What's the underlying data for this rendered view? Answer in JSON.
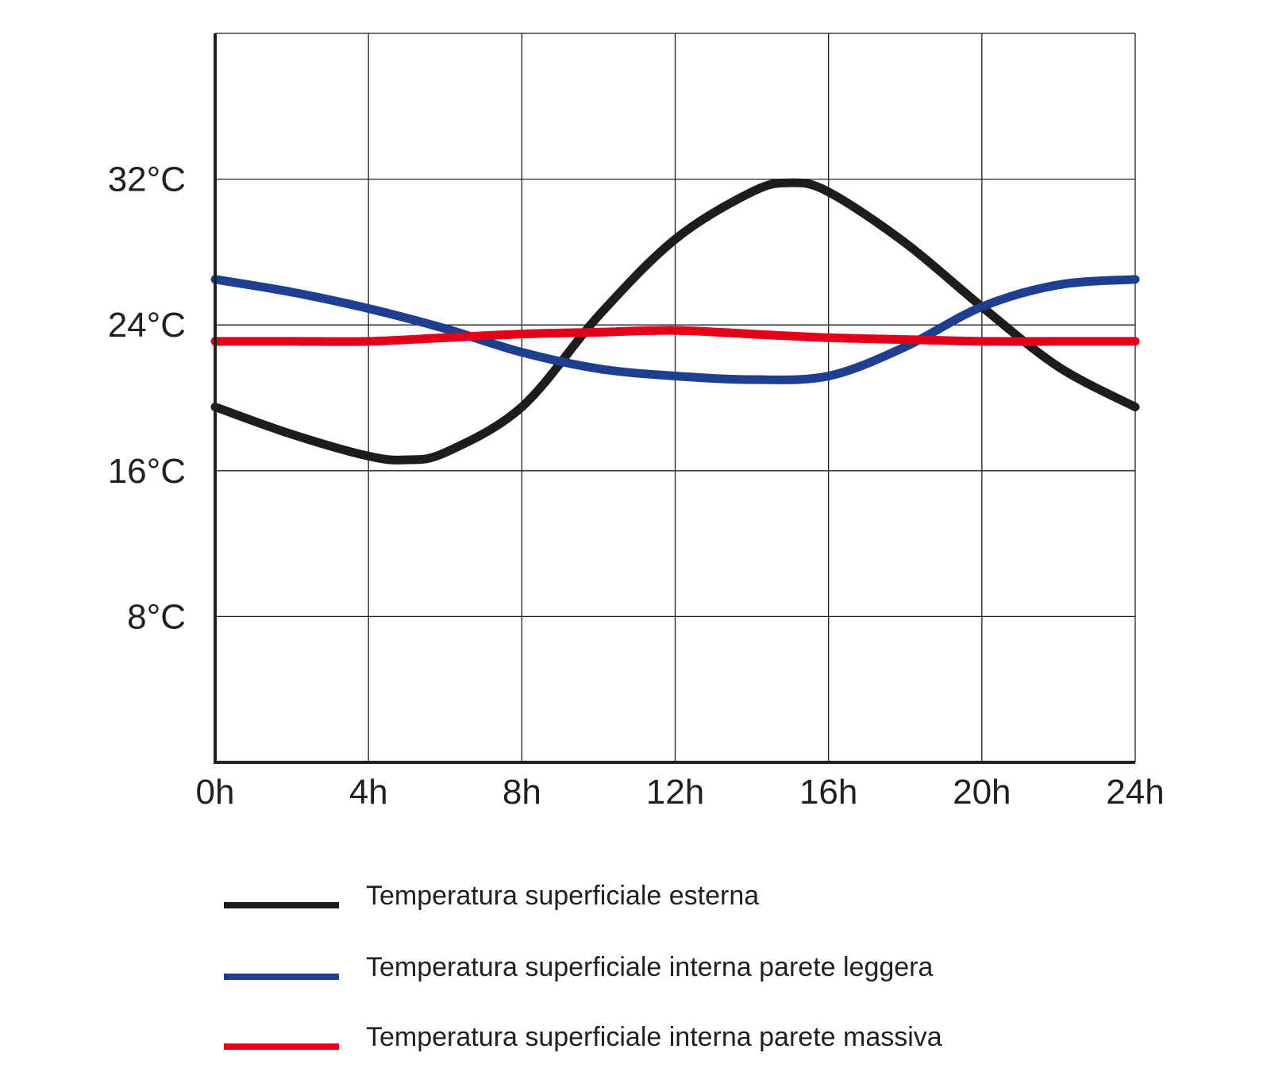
{
  "chart_data": {
    "type": "line",
    "x_ticks": [
      "0h",
      "4h",
      "8h",
      "12h",
      "16h",
      "20h",
      "24h"
    ],
    "y_ticks": [
      "8°C",
      "16°C",
      "24°C",
      "32°C"
    ],
    "y_tick_values": [
      8,
      16,
      24,
      32
    ],
    "xlim": [
      0,
      24
    ],
    "ylim": [
      0,
      40
    ],
    "grid": true,
    "legend_position": "bottom",
    "series": [
      {
        "name": "Temperatura superficiale esterna",
        "color": "#1d1d1b",
        "x": [
          0,
          2,
          4,
          5,
          6,
          8,
          10,
          12,
          14,
          15,
          16,
          18,
          20,
          22,
          24
        ],
        "y": [
          19.5,
          18.0,
          16.8,
          16.6,
          17.0,
          19.5,
          24.5,
          28.7,
          31.3,
          31.8,
          31.3,
          28.5,
          25.0,
          21.7,
          19.5
        ]
      },
      {
        "name": "Temperatura superficiale interna parete leggera",
        "color": "#1e3f91",
        "x": [
          0,
          2,
          4,
          6,
          8,
          10,
          12,
          14,
          16,
          18,
          20,
          22,
          24
        ],
        "y": [
          26.5,
          25.8,
          24.9,
          23.8,
          22.5,
          21.6,
          21.2,
          21.0,
          21.2,
          22.8,
          25.0,
          26.2,
          26.5
        ]
      },
      {
        "name": "Temperatura superficiale interna parete massiva",
        "color": "#e2001a",
        "x": [
          0,
          2,
          4,
          6,
          8,
          10,
          12,
          14,
          16,
          18,
          20,
          22,
          24
        ],
        "y": [
          23.1,
          23.1,
          23.1,
          23.3,
          23.5,
          23.6,
          23.7,
          23.5,
          23.3,
          23.2,
          23.1,
          23.1,
          23.1
        ]
      }
    ]
  }
}
